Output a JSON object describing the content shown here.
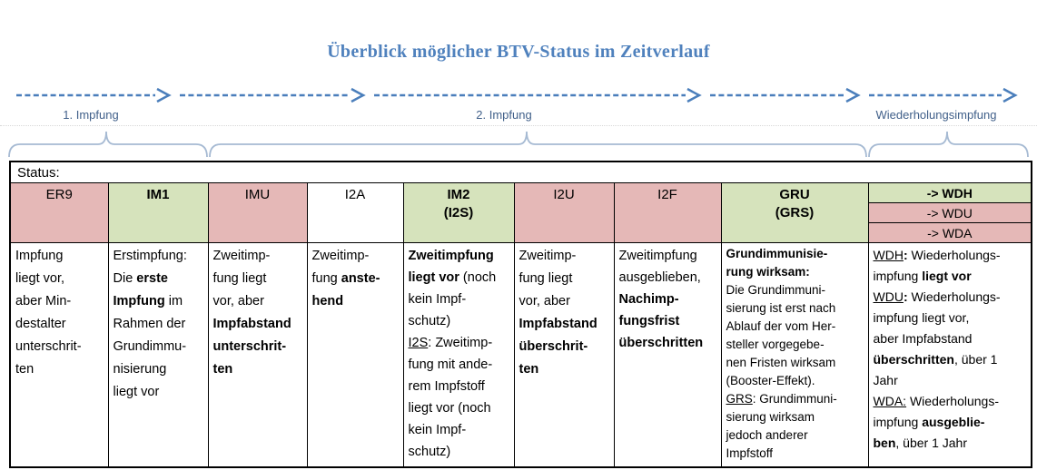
{
  "title": "Überblick möglicher BTV-Status im Zeitverlauf",
  "timeline": {
    "labels": [
      "1. Impfung",
      "2. Impfung",
      "Wiederholungsimpfung"
    ]
  },
  "colors": {
    "title_blue": "#4f81bd",
    "arrow_blue": "#4a7ebb",
    "label_blue": "#41608a",
    "brace_blue": "#a6bad3",
    "header_pink": "#e5b8b7",
    "header_green": "#d6e3bc",
    "header_white": "#ffffff"
  },
  "table": {
    "status_label": "Status:",
    "columns": [
      {
        "id": "er9",
        "code_lines": [
          "ER9"
        ],
        "code_bold": false,
        "header_color": "pink",
        "body": [
          {
            "t": "Impfung\nliegt vor,\naber Min-\ndestalter\nunterschrit-\nten"
          }
        ]
      },
      {
        "id": "im1",
        "code_lines": [
          "IM1"
        ],
        "code_bold": true,
        "header_color": "green",
        "body": [
          {
            "t": "Erstimpfung:\nDie "
          },
          {
            "t": "erste\nImpfung",
            "b": true
          },
          {
            "t": " im\nRahmen der\nGrundimmu-\nnisierung\nliegt vor"
          }
        ]
      },
      {
        "id": "imu",
        "code_lines": [
          "IMU"
        ],
        "code_bold": false,
        "header_color": "pink",
        "body": [
          {
            "t": "Zweitimp-\nfung liegt\nvor, aber\n"
          },
          {
            "t": "Impfabstand\nunterschrit-\nten",
            "b": true
          }
        ]
      },
      {
        "id": "i2a",
        "code_lines": [
          "I2A"
        ],
        "code_bold": false,
        "header_color": "white",
        "body": [
          {
            "t": "Zweitimp-\nfung "
          },
          {
            "t": "anste-\nhend",
            "b": true
          }
        ]
      },
      {
        "id": "im2",
        "code_lines": [
          "IM2",
          "(I2S)"
        ],
        "code_bold": true,
        "header_color": "green",
        "body": [
          {
            "t": "Zweitimpfung\nliegt vor",
            "b": true
          },
          {
            "t": " (noch\nkein Impf-\nschutz)\n"
          },
          {
            "t": "I2S",
            "u": true
          },
          {
            "t": ": Zweitimp-\nfung mit ande-\nrem Impfstoff\nliegt vor (noch\nkein Impf-\nschutz)"
          }
        ]
      },
      {
        "id": "i2u",
        "code_lines": [
          "I2U"
        ],
        "code_bold": false,
        "header_color": "pink",
        "body": [
          {
            "t": "Zweitimp-\nfung liegt\nvor, aber\n"
          },
          {
            "t": "Impfabstand\nüberschrit-\nten",
            "b": true
          }
        ]
      },
      {
        "id": "i2f",
        "code_lines": [
          "I2F"
        ],
        "code_bold": false,
        "header_color": "pink",
        "body": [
          {
            "t": "Zweitimpfung\nausgeblieben,\n"
          },
          {
            "t": "Nachimp-\nfungsfrist\nüberschritten",
            "b": true
          }
        ]
      },
      {
        "id": "gru",
        "code_lines": [
          "GRU",
          "(GRS)"
        ],
        "code_bold": true,
        "header_color": "green",
        "body": [
          {
            "t": "Grundimmunisie-\nrung wirksam:",
            "b": true
          },
          {
            "t": "\nDie Grundimmuni-\nsierung ist erst nach\nAblauf der vom Her-\nsteller vorgegebe-\nnen Fristen wirksam\n(Booster-Effekt).\n"
          },
          {
            "t": "GRS",
            "u": true
          },
          {
            "t": ": Grundimmuni-\nsierung wirksam\njedoch anderer\nImpfstoff"
          }
        ]
      },
      {
        "id": "wdh-wdu-wda",
        "header_color": "multi",
        "subheaders": [
          {
            "label": "-> WDH",
            "bold": true,
            "color": "green"
          },
          {
            "label": "-> WDU",
            "bold": false,
            "color": "pink"
          },
          {
            "label": "-> WDA",
            "bold": false,
            "color": "pink"
          }
        ],
        "body": [
          {
            "t": "WDH",
            "u": true
          },
          {
            "t": ":",
            "b": true
          },
          {
            "t": " Wiederholungs-\nimpfung "
          },
          {
            "t": "liegt vor",
            "b": true
          },
          {
            "t": "\n"
          },
          {
            "t": "WDU",
            "u": true
          },
          {
            "t": ":",
            "b": true
          },
          {
            "t": " Wiederholungs-\nimpfung liegt vor,\naber Impfabstand\n"
          },
          {
            "t": "überschritten",
            "b": true
          },
          {
            "t": ", über 1\nJahr\n"
          },
          {
            "t": "WDA:",
            "u": true
          },
          {
            "t": " Wiederholungs-\nimpfung "
          },
          {
            "t": "ausgeblie-\nben",
            "b": true
          },
          {
            "t": ", über 1 Jahr"
          }
        ]
      }
    ]
  }
}
